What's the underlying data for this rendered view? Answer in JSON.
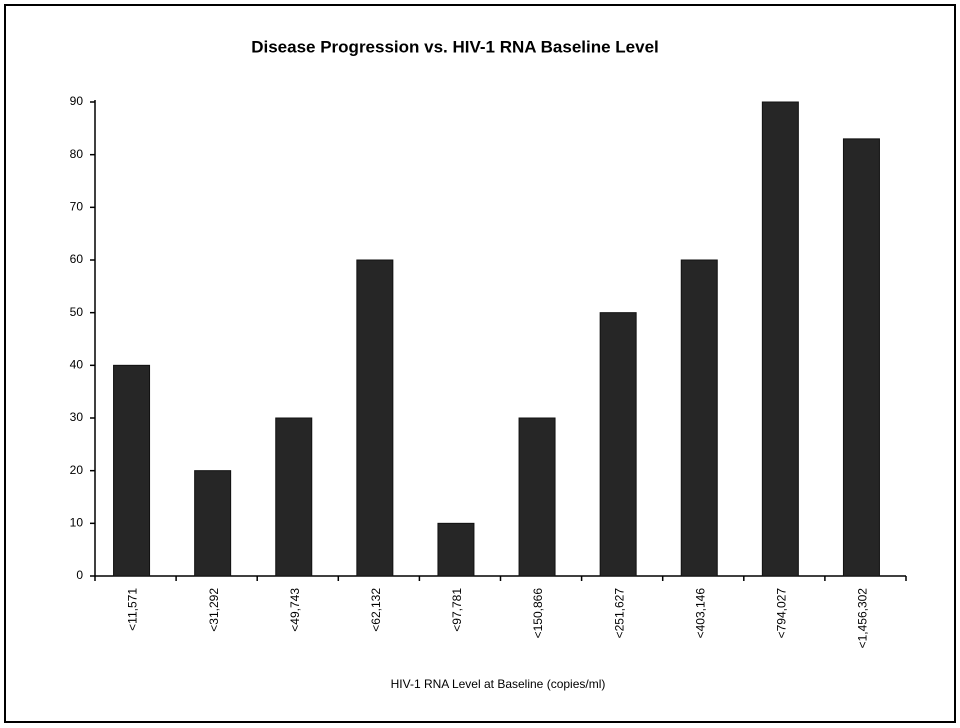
{
  "chart_data": {
    "type": "bar",
    "title": "Disease Progression vs. HIV-1 RNA Baseline Level",
    "x_label": "HIV-1 RNA Level at Baseline (copies/ml)",
    "categories": [
      "<11,571",
      "<31,292",
      "<49,743",
      "<62,132",
      "<97,781",
      "<150,866",
      "<251,627",
      "<403,146",
      "<794,027",
      "<1,456,302"
    ],
    "values": [
      40,
      20,
      30,
      60,
      10,
      30,
      50,
      60,
      90,
      83
    ],
    "color": "#262626",
    "ylim": [
      0,
      90
    ],
    "yticks": [
      0,
      10,
      20,
      30,
      40,
      50,
      60,
      70,
      80,
      90
    ],
    "grid": false
  }
}
